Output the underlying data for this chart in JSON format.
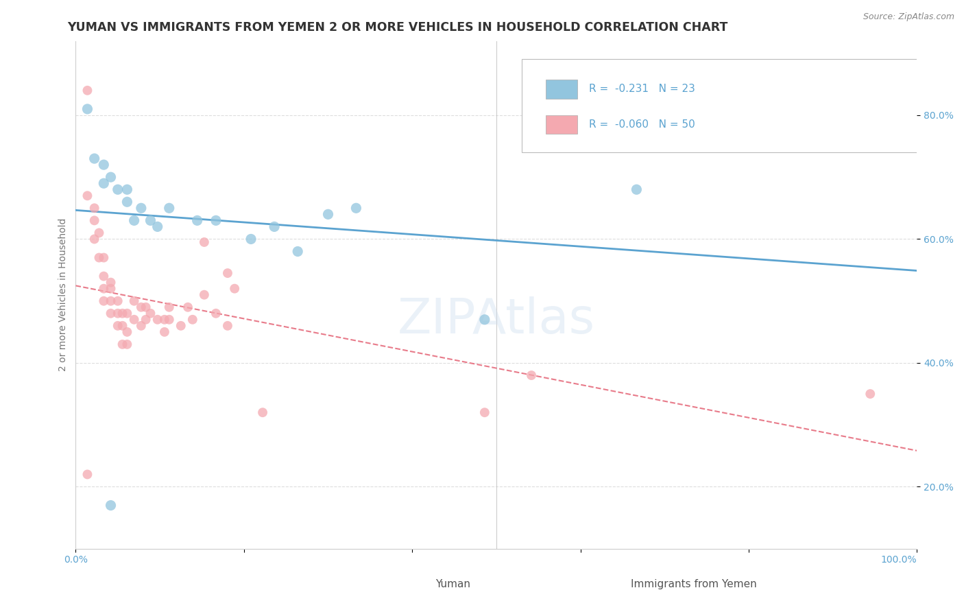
{
  "title": "YUMAN VS IMMIGRANTS FROM YEMEN 2 OR MORE VEHICLES IN HOUSEHOLD CORRELATION CHART",
  "source_text": "Source: ZipAtlas.com",
  "ylabel": "2 or more Vehicles in Household",
  "background_color": "#ffffff",
  "watermark": "ZIPAtlas",
  "legend": {
    "R1": "-0.231",
    "N1": "23",
    "R2": "-0.060",
    "N2": "50"
  },
  "yuman_points": [
    [
      0.005,
      0.81
    ],
    [
      0.008,
      0.73
    ],
    [
      0.012,
      0.72
    ],
    [
      0.012,
      0.69
    ],
    [
      0.015,
      0.7
    ],
    [
      0.018,
      0.68
    ],
    [
      0.022,
      0.68
    ],
    [
      0.022,
      0.66
    ],
    [
      0.025,
      0.63
    ],
    [
      0.028,
      0.65
    ],
    [
      0.032,
      0.63
    ],
    [
      0.035,
      0.62
    ],
    [
      0.04,
      0.65
    ],
    [
      0.052,
      0.63
    ],
    [
      0.06,
      0.63
    ],
    [
      0.075,
      0.6
    ],
    [
      0.085,
      0.62
    ],
    [
      0.095,
      0.58
    ],
    [
      0.108,
      0.64
    ],
    [
      0.12,
      0.65
    ],
    [
      0.015,
      0.17
    ],
    [
      0.175,
      0.47
    ],
    [
      0.24,
      0.68
    ]
  ],
  "yemen_points": [
    [
      0.005,
      0.84
    ],
    [
      0.005,
      0.67
    ],
    [
      0.008,
      0.65
    ],
    [
      0.008,
      0.63
    ],
    [
      0.008,
      0.6
    ],
    [
      0.01,
      0.61
    ],
    [
      0.01,
      0.57
    ],
    [
      0.012,
      0.57
    ],
    [
      0.012,
      0.54
    ],
    [
      0.012,
      0.52
    ],
    [
      0.012,
      0.5
    ],
    [
      0.015,
      0.53
    ],
    [
      0.015,
      0.52
    ],
    [
      0.015,
      0.5
    ],
    [
      0.015,
      0.48
    ],
    [
      0.018,
      0.5
    ],
    [
      0.018,
      0.48
    ],
    [
      0.018,
      0.46
    ],
    [
      0.02,
      0.48
    ],
    [
      0.02,
      0.46
    ],
    [
      0.02,
      0.43
    ],
    [
      0.022,
      0.48
    ],
    [
      0.022,
      0.45
    ],
    [
      0.022,
      0.43
    ],
    [
      0.025,
      0.5
    ],
    [
      0.025,
      0.47
    ],
    [
      0.028,
      0.49
    ],
    [
      0.028,
      0.46
    ],
    [
      0.03,
      0.49
    ],
    [
      0.03,
      0.47
    ],
    [
      0.032,
      0.48
    ],
    [
      0.035,
      0.47
    ],
    [
      0.038,
      0.47
    ],
    [
      0.038,
      0.45
    ],
    [
      0.04,
      0.49
    ],
    [
      0.04,
      0.47
    ],
    [
      0.045,
      0.46
    ],
    [
      0.048,
      0.49
    ],
    [
      0.05,
      0.47
    ],
    [
      0.055,
      0.51
    ],
    [
      0.06,
      0.48
    ],
    [
      0.065,
      0.46
    ],
    [
      0.068,
      0.52
    ],
    [
      0.08,
      0.32
    ],
    [
      0.005,
      0.22
    ],
    [
      0.175,
      0.32
    ],
    [
      0.195,
      0.38
    ],
    [
      0.055,
      0.595
    ],
    [
      0.065,
      0.545
    ],
    [
      0.34,
      0.35
    ]
  ],
  "yuman_color": "#92c5de",
  "yemen_color": "#f4a9b0",
  "yuman_line_color": "#5ba3d0",
  "yemen_line_color": "#e87b8a",
  "xlim": [
    0.0,
    0.36
  ],
  "ylim": [
    0.1,
    0.92
  ],
  "xtick_positions": [
    0.0,
    0.072,
    0.144,
    0.216,
    0.288,
    0.36
  ],
  "xtick_labels": [
    "0.0%",
    "",
    "",
    "",
    "",
    ""
  ],
  "ytick_positions": [
    0.2,
    0.4,
    0.6,
    0.8
  ],
  "ytick_labels": [
    "20.0%",
    "40.0%",
    "60.0%",
    "80.0%"
  ],
  "title_fontsize": 12.5,
  "axis_label_fontsize": 10,
  "tick_fontsize": 10,
  "tick_color": "#5ba3d0",
  "ylabel_color": "#777777"
}
